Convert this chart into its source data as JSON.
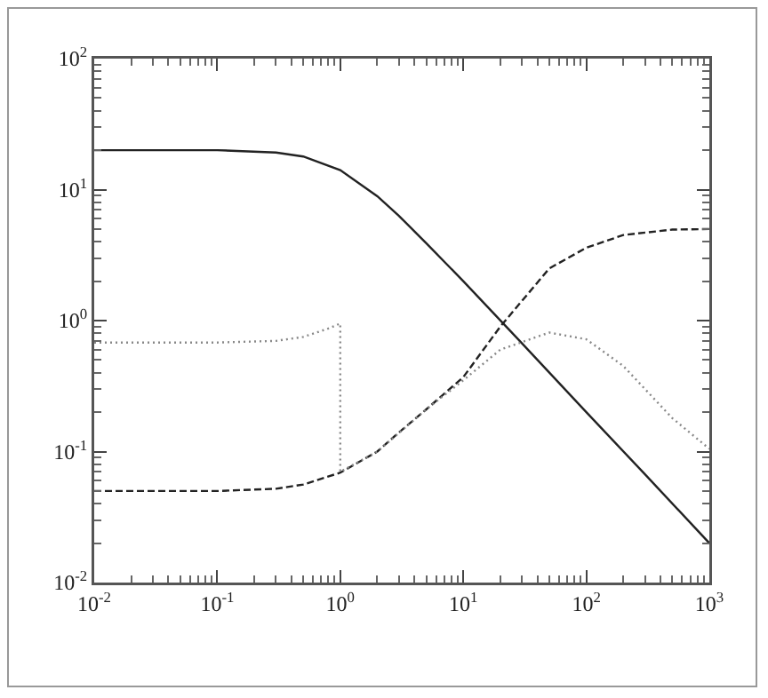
{
  "chart_data": {
    "type": "line",
    "log": "xy",
    "grid": false,
    "marker": "none",
    "xlim": [
      0.01,
      1000
    ],
    "ylim": [
      0.01,
      100
    ],
    "xticks": [
      {
        "value": 0.01,
        "label": "10$^{-2}$"
      },
      {
        "value": 0.1,
        "label": "10$^{-1}$"
      },
      {
        "value": 1,
        "label": "10$^{0}$"
      },
      {
        "value": 10,
        "label": "10$^{1}$"
      },
      {
        "value": 100,
        "label": "10$^{2}$"
      },
      {
        "value": 1000,
        "label": "10$^{3}$"
      }
    ],
    "yticks": [
      {
        "value": 0.01,
        "label": "10$^{-2}$"
      },
      {
        "value": 0.1,
        "label": "10$^{-1}$"
      },
      {
        "value": 1,
        "label": "10$^{0}$"
      },
      {
        "value": 10,
        "label": "10$^{1}$"
      },
      {
        "value": 100,
        "label": "10$^{2}$"
      }
    ],
    "series": [
      {
        "color": "#222222",
        "line_style": "solid",
        "x": [
          0.01,
          0.03,
          0.1,
          0.3,
          0.5,
          1,
          2,
          3,
          5,
          10,
          30,
          100,
          300,
          1000
        ],
        "values": [
          20,
          20,
          20,
          19.2,
          17.9,
          14.1,
          8.9,
          6.3,
          3.9,
          2.0,
          0.67,
          0.2,
          0.067,
          0.02
        ]
      },
      {
        "color": "#222222",
        "line_style": "dashed",
        "x": [
          0.01,
          0.03,
          0.1,
          0.3,
          0.5,
          1,
          2,
          3,
          5,
          10,
          20,
          50,
          100,
          200,
          500,
          1000
        ],
        "values": [
          0.05,
          0.05,
          0.05,
          0.052,
          0.056,
          0.069,
          0.1,
          0.14,
          0.21,
          0.37,
          0.9,
          2.5,
          3.6,
          4.5,
          4.95,
          5
        ]
      },
      {
        "color": "#888888",
        "line_style": "dotted",
        "x": [
          0.01,
          0.03,
          0.1,
          0.3,
          0.5,
          0.8,
          1,
          1,
          2,
          5,
          10,
          20,
          50,
          100,
          200,
          300,
          500,
          1000
        ],
        "values": [
          0.68,
          0.68,
          0.68,
          0.7,
          0.75,
          0.87,
          0.95,
          0.07,
          0.1,
          0.21,
          0.35,
          0.6,
          0.81,
          0.72,
          0.45,
          0.3,
          0.18,
          0.105
        ]
      }
    ]
  }
}
